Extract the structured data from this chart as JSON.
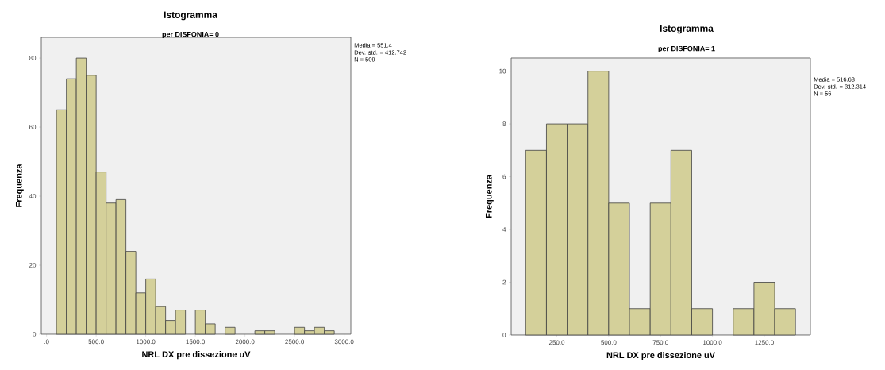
{
  "chart_data": [
    {
      "type": "histogram",
      "title": "Istogramma",
      "subtitle": "per DISFONIA= 0",
      "xlabel": "NRL DX pre dissezione uV",
      "ylabel": "Frequenza",
      "annotations": [
        "Media = 551.4",
        "Dev. std. = 412.742",
        "N = 509"
      ],
      "bins": [
        100,
        200,
        300,
        400,
        500,
        600,
        700,
        800,
        900,
        1000,
        1100,
        1200,
        1300,
        1400,
        1500,
        1600,
        1700,
        1800,
        1900,
        2000,
        2100,
        2200,
        2300,
        2400,
        2500,
        2600,
        2700,
        2800,
        2900
      ],
      "values": [
        65,
        74,
        80,
        75,
        47,
        38,
        39,
        24,
        12,
        16,
        8,
        4,
        7,
        0,
        7,
        3,
        0,
        2,
        0,
        0,
        1,
        1,
        0,
        0,
        2,
        1,
        2,
        1
      ],
      "color": "#d4d09a",
      "xlim": [
        -53,
        3067
      ],
      "ylim": [
        0,
        86
      ],
      "xticks": [
        {
          "value": 0,
          "label": ".0"
        },
        {
          "value": 500,
          "label": "500.0"
        },
        {
          "value": 1000,
          "label": "1000.0"
        },
        {
          "value": 1500,
          "label": "1500.0"
        },
        {
          "value": 2000,
          "label": "2000.0"
        },
        {
          "value": 2500,
          "label": "2500.0"
        },
        {
          "value": 3000,
          "label": "3000.0"
        }
      ],
      "yticks": [
        0,
        20,
        40,
        60,
        80
      ]
    },
    {
      "type": "histogram",
      "title": "Istogramma",
      "subtitle": "per DISFONIA= 1",
      "xlabel": "NRL DX pre dissezione uV",
      "ylabel": "Frequenza",
      "annotations": [
        "Media = 516.68",
        "Dev. std. = 312.314",
        "N = 56"
      ],
      "bins": [
        100,
        200,
        300,
        400,
        500,
        600,
        700,
        800,
        900,
        1000,
        1100,
        1200,
        1300,
        1400
      ],
      "values": [
        7,
        8,
        8,
        10,
        5,
        1,
        5,
        7,
        1,
        0,
        1,
        2,
        1
      ],
      "color": "#d4d09a",
      "xlim": [
        30,
        1472
      ],
      "ylim": [
        0,
        10.5
      ],
      "xticks": [
        {
          "value": 250,
          "label": "250.0"
        },
        {
          "value": 500,
          "label": "500.0"
        },
        {
          "value": 750,
          "label": "750.0"
        },
        {
          "value": 1000,
          "label": "1000.0"
        },
        {
          "value": 1250,
          "label": "1250.0"
        }
      ],
      "yticks": [
        0,
        2,
        4,
        6,
        8,
        10
      ]
    }
  ]
}
